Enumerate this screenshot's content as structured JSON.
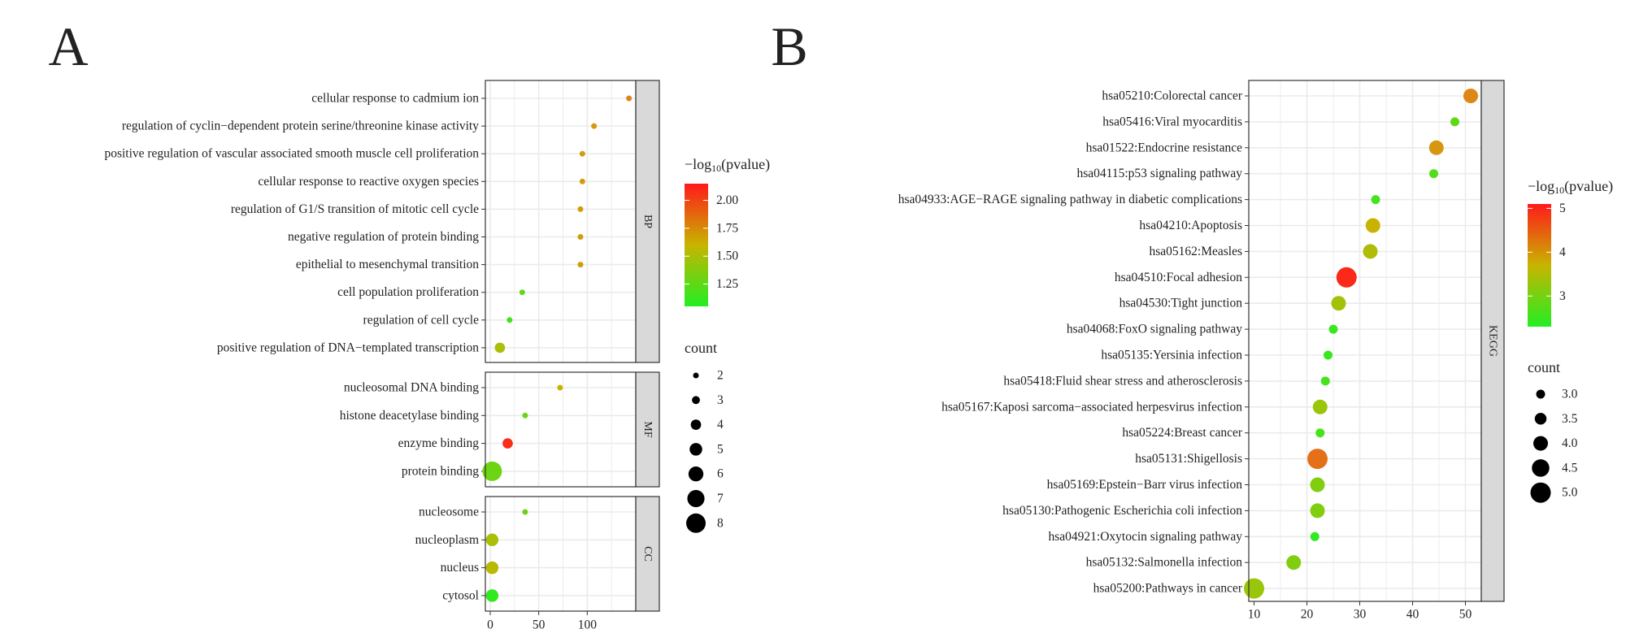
{
  "chart_data": [
    {
      "panel_label": "A",
      "type": "scatter",
      "subtype": "dot-plot",
      "x_ticks": [
        0,
        50,
        100
      ],
      "xlim": [
        -5,
        150
      ],
      "facets": [
        {
          "name": "BP",
          "terms": [
            {
              "term": "cellular response to cadmium ion",
              "x": 143,
              "pvalue_log10": 1.85,
              "count": 2
            },
            {
              "term": "regulation of cyclin−dependent protein serine/threonine kinase activity",
              "x": 107,
              "pvalue_log10": 1.75,
              "count": 2
            },
            {
              "term": "positive regulation of vascular associated smooth muscle cell proliferation",
              "x": 95,
              "pvalue_log10": 1.72,
              "count": 2
            },
            {
              "term": "cellular response to reactive oxygen species",
              "x": 95,
              "pvalue_log10": 1.72,
              "count": 2
            },
            {
              "term": "regulation of G1/S transition of mitotic cell cycle",
              "x": 93,
              "pvalue_log10": 1.72,
              "count": 2
            },
            {
              "term": "negative regulation of protein binding",
              "x": 93,
              "pvalue_log10": 1.72,
              "count": 2
            },
            {
              "term": "epithelial to mesenchymal transition",
              "x": 93,
              "pvalue_log10": 1.72,
              "count": 2
            },
            {
              "term": "cell population proliferation",
              "x": 33,
              "pvalue_log10": 1.25,
              "count": 2
            },
            {
              "term": "regulation of cell cycle",
              "x": 20,
              "pvalue_log10": 1.15,
              "count": 2
            },
            {
              "term": "positive regulation of DNA−templated transcription",
              "x": 10,
              "pvalue_log10": 1.5,
              "count": 4
            }
          ]
        },
        {
          "name": "MF",
          "terms": [
            {
              "term": "nucleosomal DNA binding",
              "x": 72,
              "pvalue_log10": 1.6,
              "count": 2
            },
            {
              "term": "histone deacetylase binding",
              "x": 36,
              "pvalue_log10": 1.3,
              "count": 2
            },
            {
              "term": "enzyme binding",
              "x": 18,
              "pvalue_log10": 2.1,
              "count": 4
            },
            {
              "term": "protein binding",
              "x": 2,
              "pvalue_log10": 1.3,
              "count": 8
            }
          ]
        },
        {
          "name": "CC",
          "terms": [
            {
              "term": "nucleosome",
              "x": 36,
              "pvalue_log10": 1.3,
              "count": 2
            },
            {
              "term": "nucleoplasm",
              "x": 2,
              "pvalue_log10": 1.5,
              "count": 5
            },
            {
              "term": "nucleus",
              "x": 2,
              "pvalue_log10": 1.55,
              "count": 5
            },
            {
              "term": "cytosol",
              "x": 2,
              "pvalue_log10": 1.1,
              "count": 5
            }
          ]
        }
      ],
      "color_legend": {
        "title_prefix": "−log",
        "title_sub": "10",
        "title_suffix": "(pvalue)",
        "range": [
          1.05,
          2.15
        ],
        "ticks": [
          "2.00",
          "1.75",
          "1.50",
          "1.25"
        ],
        "tick_values": [
          2.0,
          1.75,
          1.5,
          1.25
        ]
      },
      "size_legend": {
        "title": "count",
        "values": [
          2,
          3,
          4,
          5,
          6,
          7,
          8
        ]
      }
    },
    {
      "panel_label": "B",
      "type": "scatter",
      "subtype": "dot-plot",
      "x_ticks": [
        10,
        20,
        30,
        40,
        50
      ],
      "xlim": [
        9,
        53
      ],
      "facets": [
        {
          "name": "KEGG",
          "terms": [
            {
              "term": "hsa05210:Colorectal cancer",
              "x": 51,
              "pvalue_log10": 4.3,
              "count": 4
            },
            {
              "term": "hsa05416:Viral myocarditis",
              "x": 48,
              "pvalue_log10": 2.8,
              "count": 3
            },
            {
              "term": "hsa01522:Endocrine resistance",
              "x": 44.5,
              "pvalue_log10": 4.1,
              "count": 4
            },
            {
              "term": "hsa04115:p53 signaling pathway",
              "x": 44,
              "pvalue_log10": 2.7,
              "count": 3
            },
            {
              "term": "hsa04933:AGE−RAGE signaling pathway in diabetic complications",
              "x": 33,
              "pvalue_log10": 2.6,
              "count": 3
            },
            {
              "term": "hsa04210:Apoptosis",
              "x": 32.5,
              "pvalue_log10": 3.7,
              "count": 4
            },
            {
              "term": "hsa05162:Measles",
              "x": 32,
              "pvalue_log10": 3.5,
              "count": 4
            },
            {
              "term": "hsa04510:Focal adhesion",
              "x": 27.5,
              "pvalue_log10": 5.0,
              "count": 5
            },
            {
              "term": "hsa04530:Tight junction",
              "x": 26,
              "pvalue_log10": 3.4,
              "count": 4
            },
            {
              "term": "hsa04068:FoxO signaling pathway",
              "x": 25,
              "pvalue_log10": 2.5,
              "count": 3
            },
            {
              "term": "hsa05135:Yersinia infection",
              "x": 24,
              "pvalue_log10": 2.5,
              "count": 3
            },
            {
              "term": "hsa05418:Fluid shear stress and atherosclerosis",
              "x": 23.5,
              "pvalue_log10": 2.6,
              "count": 3
            },
            {
              "term": "hsa05167:Kaposi sarcoma−associated herpesvirus infection",
              "x": 22.5,
              "pvalue_log10": 3.3,
              "count": 4
            },
            {
              "term": "hsa05224:Breast cancer",
              "x": 22.5,
              "pvalue_log10": 2.6,
              "count": 3
            },
            {
              "term": "hsa05131:Shigellosis",
              "x": 22,
              "pvalue_log10": 4.5,
              "count": 5
            },
            {
              "term": "hsa05169:Epstein−Barr virus infection",
              "x": 22,
              "pvalue_log10": 3.1,
              "count": 4
            },
            {
              "term": "hsa05130:Pathogenic Escherichia coli infection",
              "x": 22,
              "pvalue_log10": 3.1,
              "count": 4
            },
            {
              "term": "hsa04921:Oxytocin signaling pathway",
              "x": 21.5,
              "pvalue_log10": 2.4,
              "count": 3
            },
            {
              "term": "hsa05132:Salmonella infection",
              "x": 17.5,
              "pvalue_log10": 3.1,
              "count": 4
            },
            {
              "term": "hsa05200:Pathways in cancer",
              "x": 10,
              "pvalue_log10": 3.3,
              "count": 5
            }
          ]
        }
      ],
      "color_legend": {
        "title_prefix": "−log",
        "title_sub": "10",
        "title_suffix": "(pvalue)",
        "range": [
          2.3,
          5.1
        ],
        "ticks": [
          "5",
          "4",
          "3"
        ],
        "tick_values": [
          5,
          4,
          3
        ]
      },
      "size_legend": {
        "title": "count",
        "values": [
          "3.0",
          "3.5",
          "4.0",
          "4.5",
          "5.0"
        ]
      }
    }
  ]
}
